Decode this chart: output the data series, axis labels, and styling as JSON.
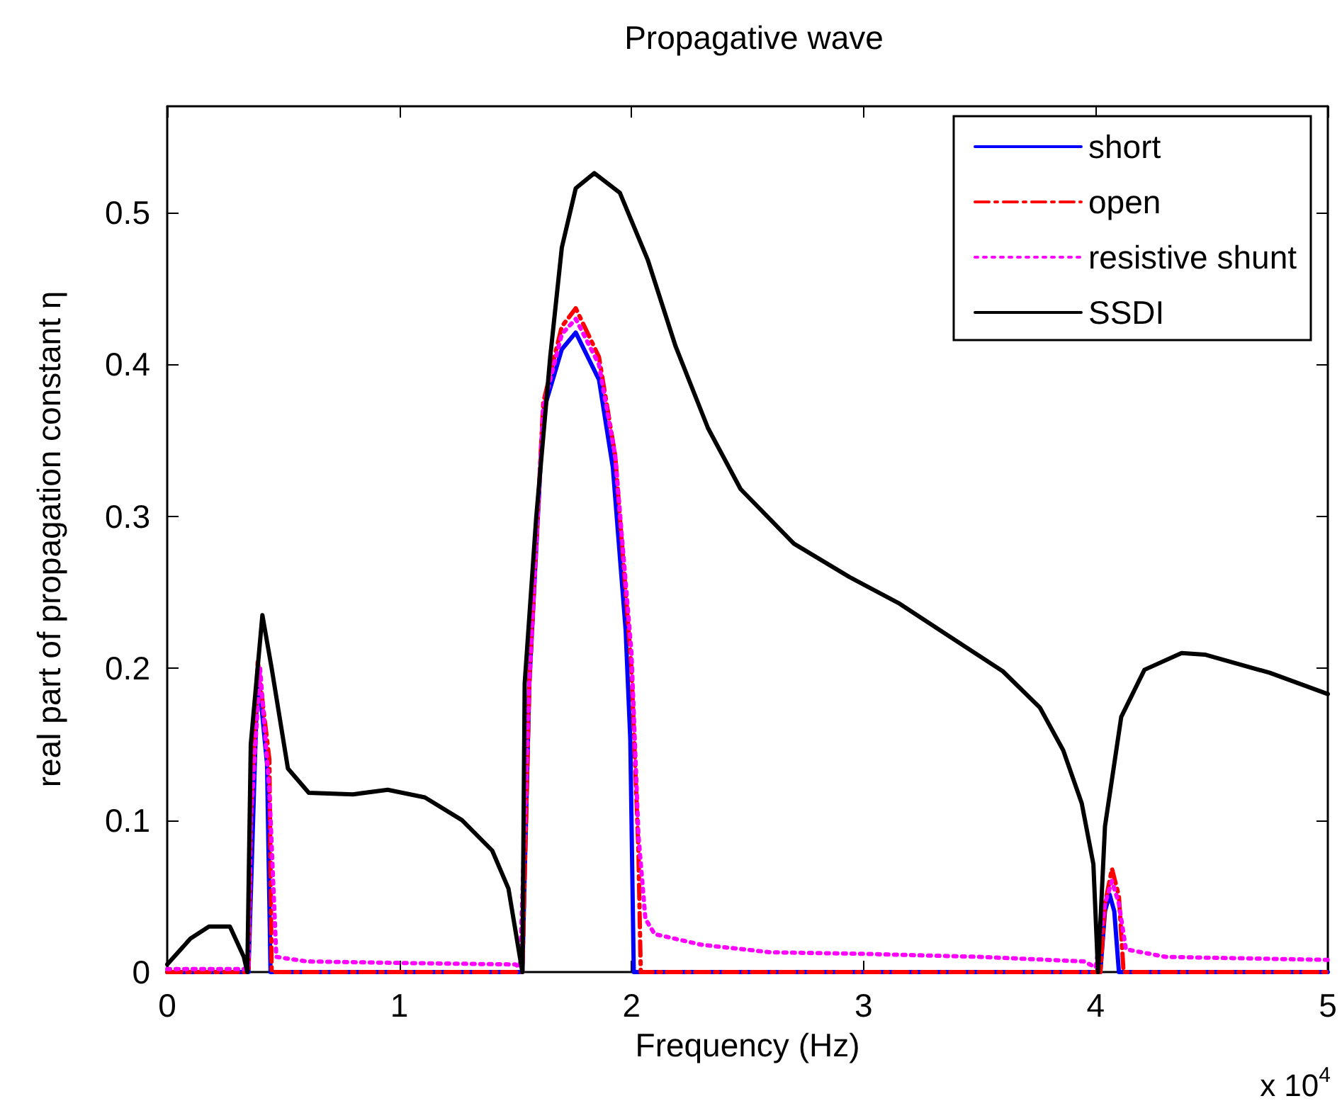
{
  "chart_data": {
    "type": "line",
    "title": "Propagative wave",
    "xlabel": "Frequency (Hz)",
    "ylabel": "real part of propagation constant η",
    "annotations": [
      "x 10$^{4}$"
    ],
    "xlim": [
      0,
      5
    ],
    "xticks": [
      0,
      1,
      2,
      3,
      4,
      5
    ],
    "ylim": [
      0,
      0.57
    ],
    "yticks": [
      0,
      0.1,
      0.2,
      0.3,
      0.4,
      0.5
    ],
    "grid": false,
    "legend": "top right",
    "marker": "none",
    "series": [
      {
        "name": "short",
        "color": "#0000ff",
        "line_style": "solid",
        "x": [
          0,
          0.35,
          0.39,
          0.43,
          0.445,
          1.53,
          1.56,
          1.62,
          1.7,
          1.76,
          1.86,
          1.92,
          1.975,
          1.995,
          2.01,
          4.02,
          4.04,
          4.06,
          4.08,
          4.1,
          5
        ],
        "values": [
          0,
          0,
          0.2,
          0.137,
          0,
          0,
          0.19,
          0.369,
          0.41,
          0.421,
          0.39,
          0.332,
          0.225,
          0.153,
          0,
          0,
          0.04,
          0.051,
          0.04,
          0,
          0
        ]
      },
      {
        "name": "open",
        "color": "#ff0000",
        "line_style": "dashdot",
        "x": [
          0,
          0.35,
          0.36,
          0.39,
          0.44,
          0.45,
          1.53,
          1.56,
          1.62,
          1.7,
          1.76,
          1.86,
          1.93,
          2.0,
          2.03,
          2.04,
          4.02,
          4.04,
          4.07,
          4.1,
          4.12,
          5
        ],
        "values": [
          0,
          0,
          0.1,
          0.205,
          0.14,
          0,
          0,
          0.19,
          0.375,
          0.425,
          0.437,
          0.405,
          0.34,
          0.2,
          0.08,
          0,
          0,
          0.045,
          0.068,
          0.05,
          0,
          0
        ]
      },
      {
        "name": "resistive shunt",
        "color": "#ff00ff",
        "line_style": "dotted",
        "x": [
          0,
          0.35,
          0.36,
          0.4,
          0.44,
          0.47,
          0.6,
          1.0,
          1.5,
          1.52,
          1.56,
          1.62,
          1.7,
          1.76,
          1.86,
          1.93,
          2.0,
          2.03,
          2.06,
          2.1,
          2.3,
          2.6,
          3.0,
          3.5,
          3.95,
          4.0,
          4.04,
          4.07,
          4.1,
          4.13,
          4.3,
          5
        ],
        "values": [
          0.002,
          0.002,
          0.1,
          0.2,
          0.12,
          0.01,
          0.007,
          0.006,
          0.005,
          0.003,
          0.19,
          0.372,
          0.42,
          0.43,
          0.4,
          0.34,
          0.21,
          0.09,
          0.035,
          0.025,
          0.018,
          0.013,
          0.012,
          0.01,
          0.007,
          0.003,
          0.045,
          0.06,
          0.045,
          0.015,
          0.01,
          0.008
        ]
      },
      {
        "name": "SSDI",
        "color": "#000000",
        "line_style": "solid",
        "x": [
          0,
          0.1,
          0.18,
          0.27,
          0.33,
          0.345,
          0.36,
          0.41,
          0.45,
          0.52,
          0.61,
          0.8,
          0.95,
          1.11,
          1.27,
          1.4,
          1.47,
          1.53,
          1.54,
          1.59,
          1.65,
          1.7,
          1.76,
          1.84,
          1.95,
          2.07,
          2.19,
          2.33,
          2.47,
          2.7,
          2.94,
          3.15,
          3.35,
          3.6,
          3.76,
          3.86,
          3.94,
          3.99,
          4.01,
          4.04,
          4.11,
          4.21,
          4.37,
          4.47,
          4.75,
          5
        ],
        "values": [
          0.005,
          0.022,
          0.03,
          0.03,
          0.01,
          0,
          0.15,
          0.235,
          0.2,
          0.134,
          0.118,
          0.117,
          0.12,
          0.115,
          0.1,
          0.08,
          0.055,
          0,
          0.19,
          0.3,
          0.405,
          0.477,
          0.516,
          0.526,
          0.513,
          0.469,
          0.412,
          0.358,
          0.318,
          0.282,
          0.26,
          0.243,
          0.223,
          0.198,
          0.174,
          0.146,
          0.111,
          0.071,
          0,
          0.096,
          0.168,
          0.199,
          0.21,
          0.209,
          0.197,
          0.183
        ]
      }
    ]
  }
}
